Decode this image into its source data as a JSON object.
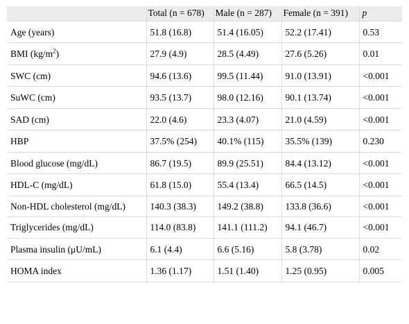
{
  "table": {
    "headers": [
      "",
      "Total (n = 678)",
      "Male (n = 287)",
      "Female (n = 391)",
      "p"
    ],
    "rows": [
      {
        "label": "Age (years)",
        "total": "51.8 (16.8)",
        "male": "51.4 (16.05)",
        "female": "52.2 (17.41)",
        "p": "0.53"
      },
      {
        "label_pre": "BMI (kg/m",
        "label_sup": "2",
        "label_post": ")",
        "total": "27.9 (4.9)",
        "male": "28.5 (4.49)",
        "female": "27.6 (5.26)",
        "p": "0.01"
      },
      {
        "label": "SWC (cm)",
        "total": "94.6 (13.6)",
        "male": "99.5 (11.44)",
        "female": "91.0 (13.91)",
        "p": "<0.001"
      },
      {
        "label": "SuWC (cm)",
        "total": "93.5 (13.7)",
        "male": "98.0 (12.16)",
        "female": "90.1 (13.74)",
        "p": "<0.001"
      },
      {
        "label": "SAD (cm)",
        "total": "22.0 (4.6)",
        "male": "23.3 (4.07)",
        "female": "21.0 (4.59)",
        "p": "<0.001"
      },
      {
        "label": "HBP",
        "total": "37.5% (254)",
        "male": "40.1% (115)",
        "female": "35.5% (139)",
        "p": "0.230"
      },
      {
        "label": "Blood glucose (mg/dL)",
        "total": "86.7 (19.5)",
        "male": "89.9 (25.51)",
        "female": "84.4 (13.12)",
        "p": "<0.001"
      },
      {
        "label": "HDL-C (mg/dL)",
        "total": "61.8 (15.0)",
        "male": "55.4 (13.4)",
        "female": "66.5 (14.5)",
        "p": "<0.001"
      },
      {
        "label": "Non-HDL cholesterol (mg/dL)",
        "total": "140.3 (38.3)",
        "male": "149.2 (38.8)",
        "female": "133.8 (36.6)",
        "p": "<0.001"
      },
      {
        "label": "Triglycerides (mg/dL)",
        "total": "114.0 (83.8)",
        "male": "141.1 (111.2)",
        "female": "94.1 (46.7)",
        "p": "<0.001"
      },
      {
        "label": "Plasma insulin (μU/mL)",
        "total": "6.1 (4.4)",
        "male": "6.6 (5.16)",
        "female": "5.8 (3.78)",
        "p": "0.02"
      },
      {
        "label": "HOMA index",
        "total": "1.36 (1.17)",
        "male": "1.51 (1.40)",
        "female": "1.25 (0.95)",
        "p": "0.005"
      }
    ]
  }
}
